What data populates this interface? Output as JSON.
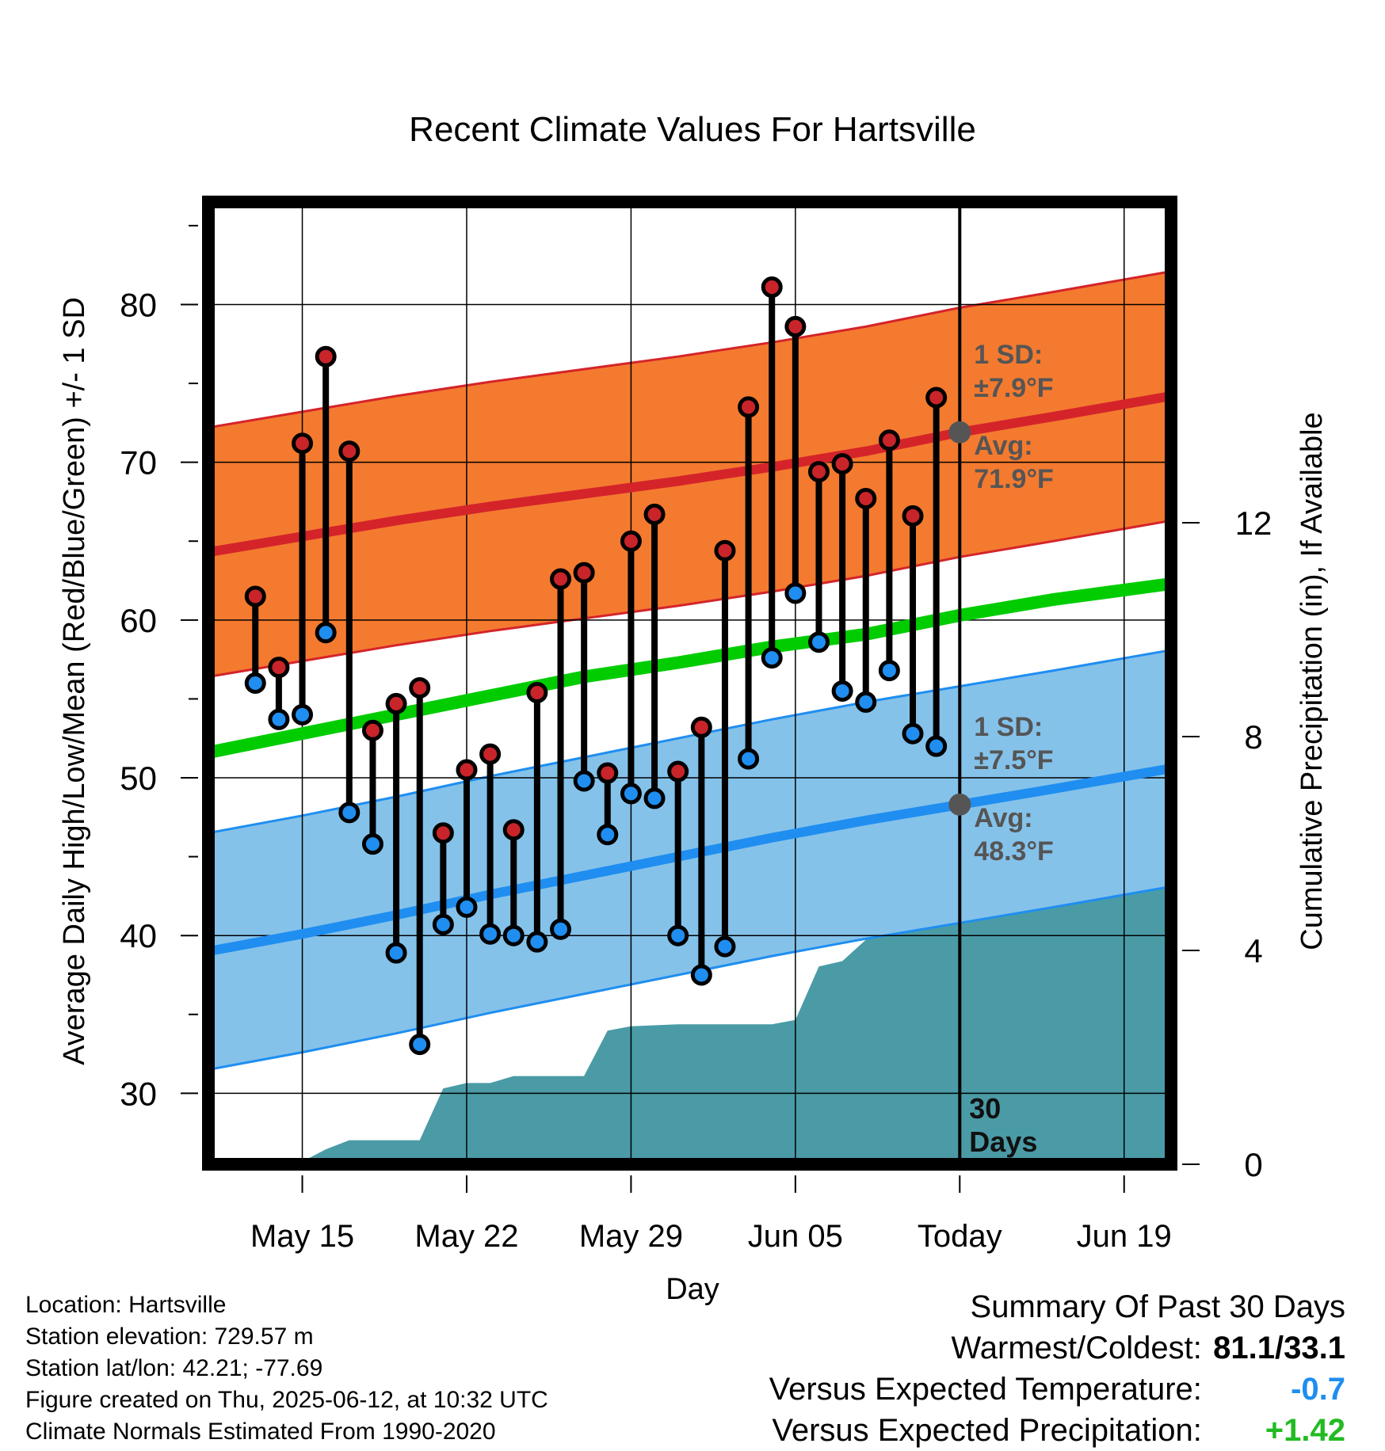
{
  "chart_data": {
    "type": "line",
    "title": "Recent Climate Values For Hartsville",
    "xlabel": "Day",
    "ylabel": "Average Daily High/Low/Mean (Red/Blue/Green) +/- 1 SD",
    "y2label": "Cumulative Precipitation (in), If Available",
    "ylim": [
      25.5,
      86.5
    ],
    "y2lim": [
      0,
      18
    ],
    "xlim": [
      "2025-05-11",
      "2025-06-21"
    ],
    "y_ticks": [
      30,
      40,
      50,
      60,
      70,
      80
    ],
    "y2_ticks": [
      0,
      4,
      8,
      12
    ],
    "x_ticks": [
      {
        "date": "2025-05-15",
        "label": "May 15"
      },
      {
        "date": "2025-05-22",
        "label": "May 22"
      },
      {
        "date": "2025-05-29",
        "label": "May 29"
      },
      {
        "date": "2025-06-05",
        "label": "Jun 05"
      },
      {
        "date": "2025-06-12",
        "label": "Today"
      },
      {
        "date": "2025-06-19",
        "label": "Jun 19"
      }
    ],
    "today": {
      "date": "2025-06-12",
      "label": "30 Days",
      "label_lines": [
        "30",
        "Days"
      ]
    },
    "observed": {
      "dates": [
        "2025-05-13",
        "2025-05-14",
        "2025-05-15",
        "2025-05-16",
        "2025-05-17",
        "2025-05-18",
        "2025-05-19",
        "2025-05-20",
        "2025-05-21",
        "2025-05-22",
        "2025-05-23",
        "2025-05-24",
        "2025-05-25",
        "2025-05-26",
        "2025-05-27",
        "2025-05-28",
        "2025-05-29",
        "2025-05-30",
        "2025-05-31",
        "2025-06-01",
        "2025-06-02",
        "2025-06-03",
        "2025-06-04",
        "2025-06-05",
        "2025-06-06",
        "2025-06-07",
        "2025-06-08",
        "2025-06-09",
        "2025-06-10",
        "2025-06-11"
      ],
      "high": [
        61.5,
        57.0,
        71.2,
        76.7,
        70.7,
        53.0,
        54.7,
        55.7,
        46.5,
        50.5,
        51.5,
        46.7,
        55.4,
        62.6,
        63.0,
        50.3,
        65.0,
        66.7,
        50.4,
        53.2,
        64.4,
        73.5,
        81.1,
        78.6,
        69.4,
        69.9,
        67.7,
        71.4,
        66.6,
        74.1
      ],
      "low": [
        56.0,
        53.7,
        54.0,
        59.2,
        47.8,
        45.8,
        38.9,
        33.1,
        40.7,
        41.8,
        40.1,
        40.0,
        39.6,
        40.4,
        49.8,
        46.4,
        49.0,
        48.7,
        40.0,
        37.5,
        39.3,
        51.2,
        57.6,
        61.7,
        58.6,
        55.5,
        54.8,
        56.8,
        52.8,
        52.0
      ]
    },
    "normals": {
      "dates": [
        "2025-05-11",
        "2025-05-15",
        "2025-05-19",
        "2025-05-23",
        "2025-05-27",
        "2025-05-31",
        "2025-06-04",
        "2025-06-08",
        "2025-06-12",
        "2025-06-16",
        "2025-06-21"
      ],
      "high_mean": [
        64.3,
        65.3,
        66.3,
        67.2,
        68.0,
        68.8,
        69.7,
        70.7,
        71.9,
        72.9,
        74.2
      ],
      "high_sd": 7.9,
      "low_mean": [
        39.0,
        40.1,
        41.3,
        42.6,
        43.8,
        45.0,
        46.2,
        47.3,
        48.3,
        49.3,
        50.6
      ],
      "low_sd": 7.5,
      "mean": [
        51.6,
        52.8,
        54.0,
        55.2,
        56.4,
        57.3,
        58.3,
        59.1,
        60.3,
        61.3,
        62.3
      ]
    },
    "precipitation": {
      "dates": [
        "2025-05-11",
        "2025-05-13",
        "2025-05-14",
        "2025-05-15",
        "2025-05-16",
        "2025-05-17",
        "2025-05-18",
        "2025-05-19",
        "2025-05-20",
        "2025-05-21",
        "2025-05-22",
        "2025-05-23",
        "2025-05-24",
        "2025-05-25",
        "2025-05-26",
        "2025-05-27",
        "2025-05-28",
        "2025-05-29",
        "2025-05-30",
        "2025-05-31",
        "2025-06-01",
        "2025-06-02",
        "2025-06-03",
        "2025-06-04",
        "2025-06-05",
        "2025-06-06",
        "2025-06-07",
        "2025-06-08",
        "2025-06-09",
        "2025-06-10",
        "2025-06-11",
        "2025-06-12",
        "2025-06-21"
      ],
      "cumulative": [
        0,
        0,
        0.04,
        0.05,
        0.28,
        0.45,
        0.45,
        0.45,
        0.45,
        1.42,
        1.52,
        1.52,
        1.65,
        1.65,
        1.65,
        1.65,
        2.5,
        2.58,
        2.6,
        2.62,
        2.62,
        2.62,
        2.62,
        2.62,
        2.7,
        3.7,
        3.8,
        4.2,
        5.48,
        5.48,
        5.48,
        5.48,
        5.48
      ]
    },
    "annotations": {
      "high_sd_label": "1 SD:",
      "high_sd_value": "±7.9°F",
      "high_avg_label": "Avg:",
      "high_avg_value": "71.9°F",
      "low_sd_label": "1 SD:",
      "low_sd_value": "±7.5°F",
      "low_avg_label": "Avg:",
      "low_avg_value": "48.3°F"
    },
    "colors": {
      "high_band": "#f47a2f",
      "high_line": "#d4242a",
      "low_band": "#85c2ea",
      "low_line": "#1f8ef0",
      "mean_line": "#00cc00",
      "precip": "#4a9ba6",
      "marker_high": "#c8242a",
      "marker_low": "#1f8ef0",
      "annotation": "#555555"
    },
    "grid": true
  },
  "footer": {
    "location": "Location: Hartsville",
    "elevation": "Station elevation: 729.57 m",
    "latlon": "Station lat/lon: 42.21; -77.69",
    "created": "Figure created on Thu, 2025-06-12, at 10:32 UTC",
    "normals": "Climate Normals Estimated From 1990-2020"
  },
  "summary": {
    "title": "Summary Of Past 30 Days",
    "warm_cold_label": "Warmest/Coldest:",
    "warm_cold_value": "81.1/33.1",
    "temp_label": "Versus Expected Temperature:",
    "temp_value": "-0.7",
    "temp_color": "#1f8ef0",
    "precip_label": "Versus Expected Precipitation:",
    "precip_value": "+1.42",
    "precip_color": "#22bb22"
  }
}
